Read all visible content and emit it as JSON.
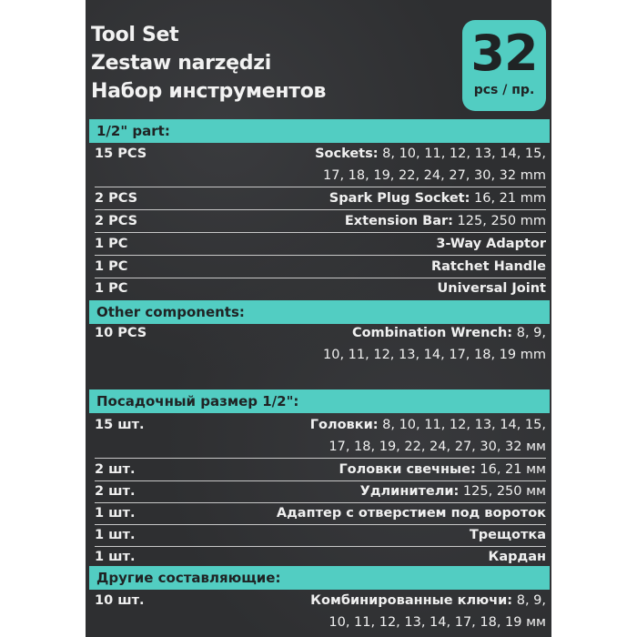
{
  "title": {
    "line1": "Tool Set",
    "line2": "Zestaw narzędzi",
    "line3": "Набор инструментов"
  },
  "badge": {
    "count": "32",
    "unit": "pcs / пр."
  },
  "colors": {
    "accent": "#52cdc2",
    "background": "#2e2f31",
    "text": "#f0f0f0"
  },
  "english": {
    "section1": "1/2\" part:",
    "rows1": [
      {
        "qty": "15 PCS",
        "name": "Sockets:",
        "values": " 8, 10, 11, 12, 13, 14, 15,",
        "values2": "17, 18, 19, 22, 24, 27, 30, 32 mm"
      },
      {
        "qty": "2 PCS",
        "name": "Spark Plug Socket:",
        "values": " 16, 21 mm"
      },
      {
        "qty": "2 PCS",
        "name": "Extension Bar:",
        "values": " 125, 250 mm"
      },
      {
        "qty": "1 PC",
        "name": "3-Way Adaptor",
        "values": ""
      },
      {
        "qty": "1 PC",
        "name": "Ratchet Handle",
        "values": ""
      },
      {
        "qty": "1 PC",
        "name": "Universal Joint",
        "values": ""
      }
    ],
    "section2": "Other components:",
    "rows2": [
      {
        "qty": "10 PCS",
        "name": "Combination Wrench:",
        "values": " 8, 9,",
        "values2": "10, 11, 12, 13, 14, 17, 18, 19 mm"
      }
    ]
  },
  "russian": {
    "section1": "Посадочный размер 1/2\":",
    "rows1": [
      {
        "qty": "15 шт.",
        "name": "Головки:",
        "values": " 8, 10, 11, 12, 13, 14, 15,",
        "values2": "17, 18, 19, 22, 24, 27, 30, 32 мм"
      },
      {
        "qty": "2 шт.",
        "name": "Головки свечные:",
        "values": " 16, 21 мм"
      },
      {
        "qty": "2 шт.",
        "name": "Удлинители:",
        "values": " 125, 250 мм"
      },
      {
        "qty": "1 шт.",
        "name": "Адаптер с отверстием под вороток",
        "values": ""
      },
      {
        "qty": "1 шт.",
        "name": "Трещотка",
        "values": ""
      },
      {
        "qty": "1 шт.",
        "name": "Кардан",
        "values": ""
      }
    ],
    "section2": "Другие составляющие:",
    "rows2": [
      {
        "qty": "10 шт.",
        "name": "Комбинированные ключи:",
        "values": " 8, 9,",
        "values2": "10, 11, 12, 13, 14, 17, 18, 19 мм"
      }
    ]
  }
}
